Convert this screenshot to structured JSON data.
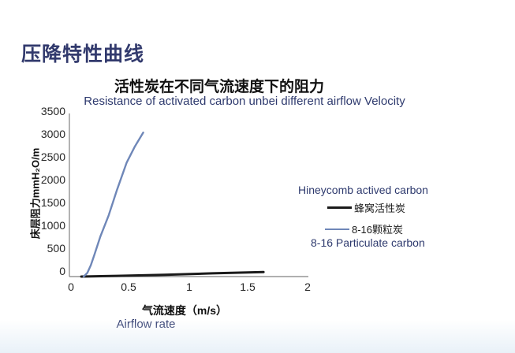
{
  "page": {
    "title": "压降特性曲线"
  },
  "chart_data": {
    "type": "line",
    "title": "活性炭在不同气流速度下的阻力",
    "subtitle": "Resistance of activated carbon unbei different airflow Velocity",
    "ylabel": "床层阻力mmH₂O/m",
    "xlabel": "气流速度（m/s）",
    "xlabel_en": "Airflow rate",
    "xlim": [
      0,
      2
    ],
    "ylim": [
      0,
      3500
    ],
    "xticks": [
      "0",
      "0.5",
      "1",
      "1.5",
      "2"
    ],
    "yticks": [
      "3500",
      "3000",
      "2500",
      "2000",
      "1500",
      "1000",
      "500",
      "0"
    ],
    "grid": false,
    "legend_position": "right",
    "series": [
      {
        "name": "蜂窝活性炭",
        "name_en": "Hineycomb actived carbon",
        "color": "#1a1a1a",
        "points": [
          [
            0.1,
            0
          ],
          [
            0.4,
            15
          ],
          [
            0.8,
            40
          ],
          [
            1.2,
            70
          ],
          [
            1.63,
            100
          ]
        ]
      },
      {
        "name": "8-16颗粒炭",
        "name_en": "8-16 Particulate carbon",
        "color": "#6f87b8",
        "points": [
          [
            0.12,
            0
          ],
          [
            0.15,
            80
          ],
          [
            0.18,
            250
          ],
          [
            0.21,
            480
          ],
          [
            0.26,
            880
          ],
          [
            0.33,
            1340
          ],
          [
            0.4,
            1900
          ],
          [
            0.48,
            2490
          ],
          [
            0.55,
            2850
          ],
          [
            0.62,
            3150
          ]
        ]
      }
    ]
  },
  "colors": {
    "title_navy": "#323a6d",
    "subtitle_navy": "#2e3a6e",
    "curve_blue": "#6f87b8",
    "curve_black": "#1a1a1a",
    "axis_gray": "#808080"
  }
}
